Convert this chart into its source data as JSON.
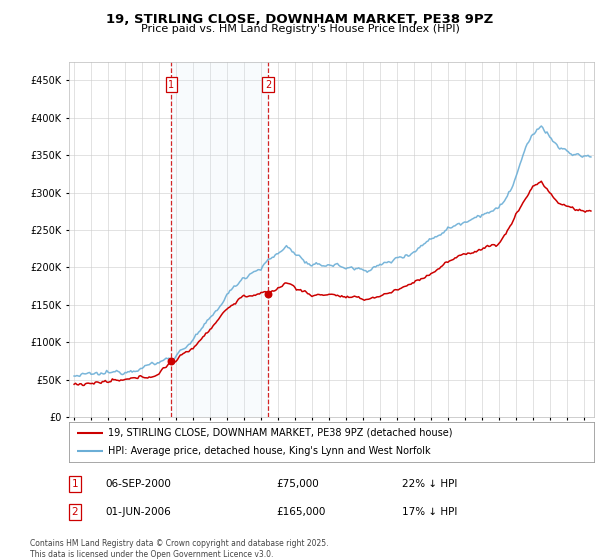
{
  "title": "19, STIRLING CLOSE, DOWNHAM MARKET, PE38 9PZ",
  "subtitle": "Price paid vs. HM Land Registry's House Price Index (HPI)",
  "legend_line1": "19, STIRLING CLOSE, DOWNHAM MARKET, PE38 9PZ (detached house)",
  "legend_line2": "HPI: Average price, detached house, King's Lynn and West Norfolk",
  "footer": "Contains HM Land Registry data © Crown copyright and database right 2025.\nThis data is licensed under the Open Government Licence v3.0.",
  "sale1_date": "06-SEP-2000",
  "sale1_price": "£75,000",
  "sale1_hpi": "22% ↓ HPI",
  "sale2_date": "01-JUN-2006",
  "sale2_price": "£165,000",
  "sale2_hpi": "17% ↓ HPI",
  "hpi_color": "#6baed6",
  "price_color": "#cc0000",
  "background_color": "#ffffff",
  "plot_background": "#ffffff",
  "grid_color": "#cccccc",
  "ylim": [
    0,
    475000
  ],
  "yticks": [
    0,
    50000,
    100000,
    150000,
    200000,
    250000,
    300000,
    350000,
    400000,
    450000
  ],
  "sale1_x": 2000.705,
  "sale2_x": 2006.415,
  "annotation_bg": "#dce9f7",
  "sale1_marker_value": 75000,
  "sale2_marker_value": 165000
}
